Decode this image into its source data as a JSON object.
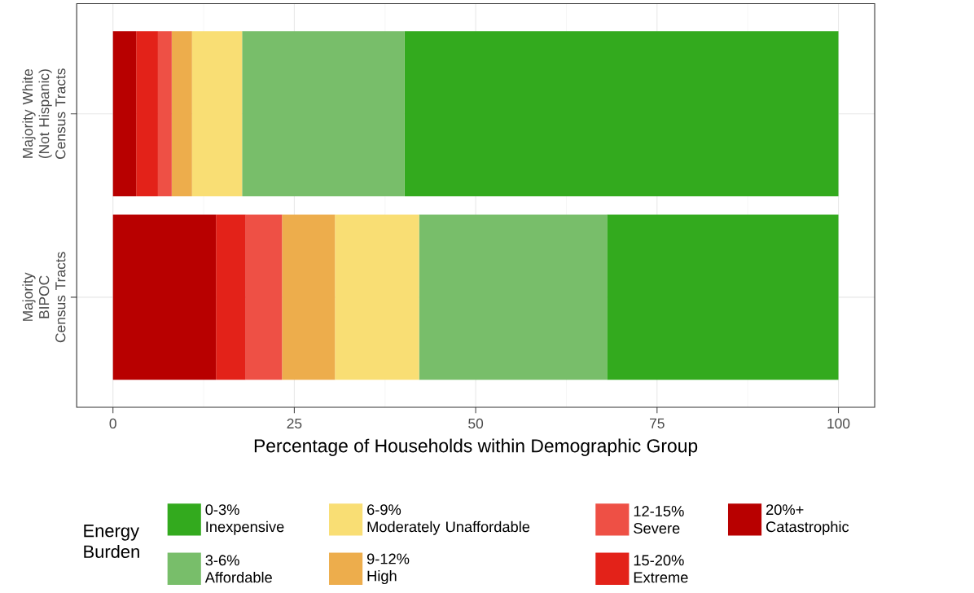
{
  "chart_data": {
    "type": "bar",
    "orientation": "horizontal",
    "stacked": true,
    "xlabel": "Percentage of Households within Demographic Group",
    "legend_title": "Energy Burden",
    "legend": "bottom",
    "grid": true,
    "categories": [
      "Majority White\n(Not Hispanic)\nCensus Tracts",
      "Majority\nBIPOC\nCensus Tracts"
    ],
    "xlim": [
      -5,
      105
    ],
    "xticks": [
      0,
      25,
      50,
      75,
      100
    ],
    "series": [
      {
        "name": "20%+\nCatastrophic",
        "color": "#b80000",
        "values": [
          3.2,
          14.2
        ]
      },
      {
        "name": "15-20%\nExtreme",
        "color": "#e32219",
        "values": [
          3.0,
          4.1
        ]
      },
      {
        "name": "12-15%\nSevere",
        "color": "#ee5045",
        "values": [
          1.9,
          5.0
        ]
      },
      {
        "name": "9-12%\nHigh",
        "color": "#edad4c",
        "values": [
          2.8,
          7.3
        ]
      },
      {
        "name": "6-9%\nModerately Unaffordable",
        "color": "#f9de74",
        "values": [
          6.9,
          11.6
        ]
      },
      {
        "name": "3-6%\nAffordable",
        "color": "#78be6a",
        "values": [
          22.4,
          25.9
        ]
      },
      {
        "name": "0-3%\nInexpensive",
        "color": "#33aa1e",
        "values": [
          59.8,
          31.9
        ]
      }
    ]
  }
}
